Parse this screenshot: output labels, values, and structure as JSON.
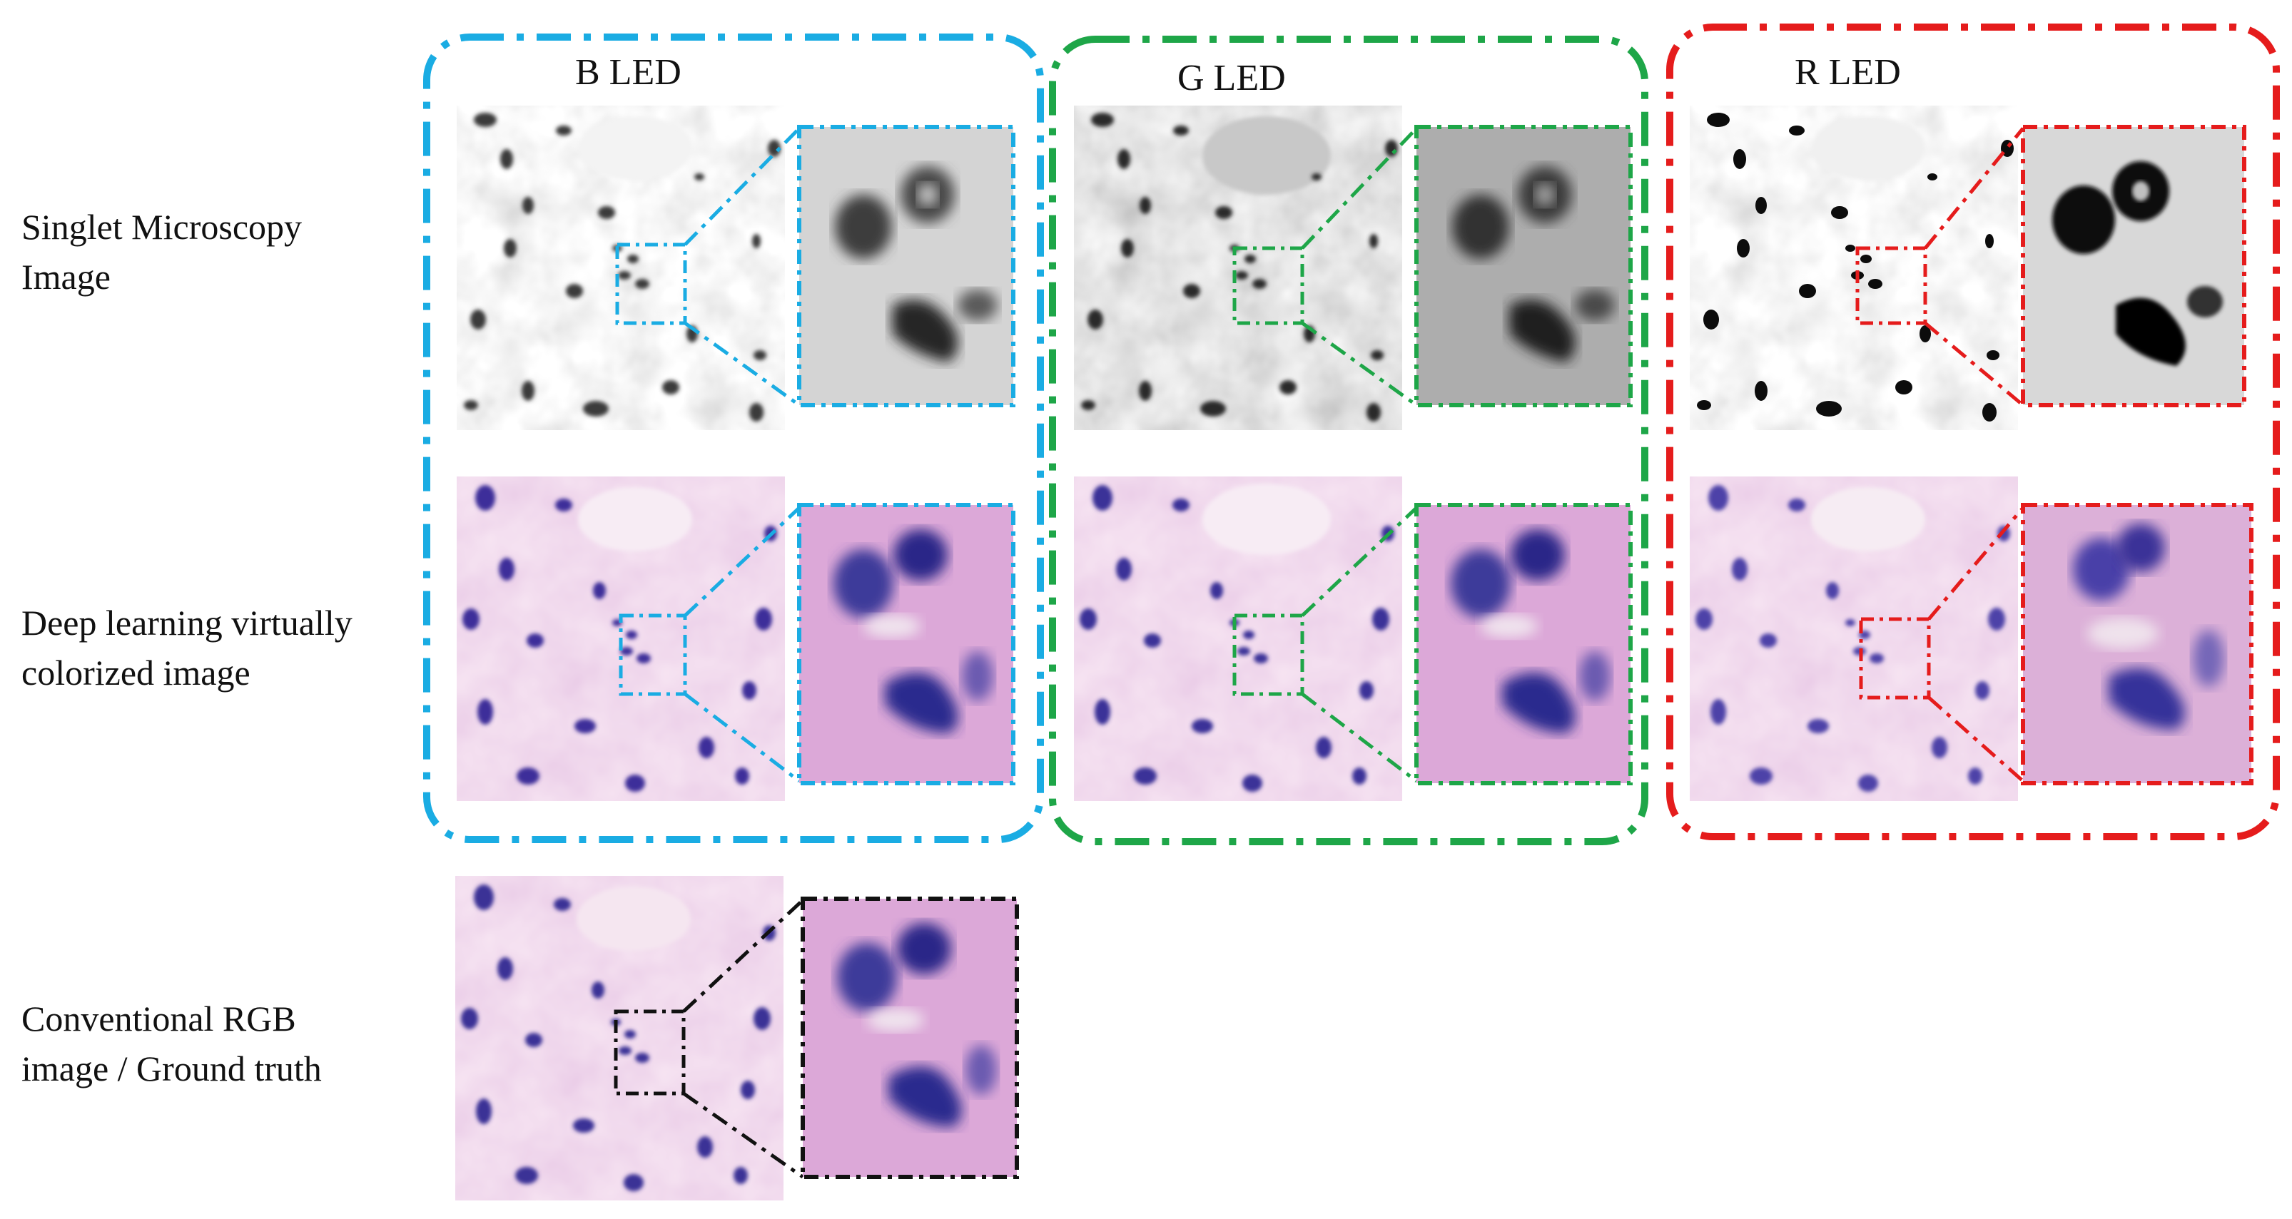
{
  "figure": {
    "columns": [
      {
        "title": "B LED",
        "color": "#1aace3"
      },
      {
        "title": "G LED",
        "color": "#1ea648"
      },
      {
        "title": "R LED",
        "color": "#e51c1c"
      }
    ],
    "rows": [
      {
        "label_lines": [
          "Singlet Microscopy",
          "Image"
        ]
      },
      {
        "label_lines": [
          "Deep learning virtually",
          "colorized image"
        ]
      },
      {
        "label_lines": [
          "Conventional RGB",
          "image / Ground truth"
        ]
      }
    ],
    "ground_truth_color": "#111111",
    "panel_kinds": {
      "B LED": "grayscale-blue-channel",
      "G LED": "grayscale-green-channel",
      "R LED": "grayscale-red-channel",
      "colorized": "he-stain-pink-purple"
    }
  }
}
